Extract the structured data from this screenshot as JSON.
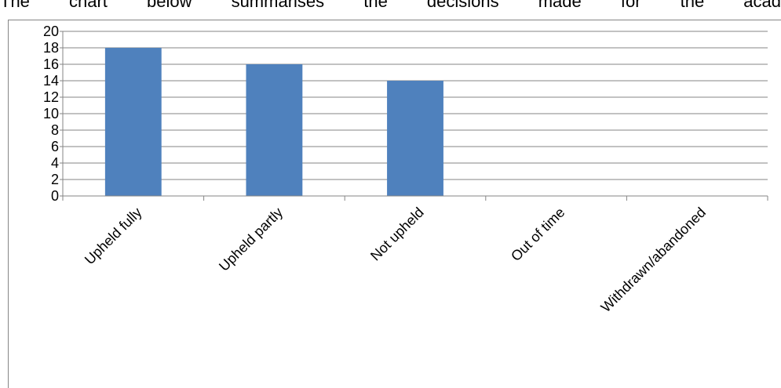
{
  "intro_text": "The chart below summarises the decisions made for the acad",
  "chart_data": {
    "type": "bar",
    "categories": [
      "Upheld fully",
      "Upheld partly",
      "Not upheld",
      "Out of time",
      "Withdrawn/abandoned"
    ],
    "values": [
      18,
      16,
      14,
      0,
      0
    ],
    "y_ticks": [
      "0",
      "2",
      "4",
      "6",
      "8",
      "10",
      "12",
      "14",
      "16",
      "18",
      "20"
    ],
    "ylim": [
      0,
      20
    ],
    "title": "",
    "xlabel": "",
    "ylabel": "",
    "grid": true,
    "legend": "none",
    "colors": {
      "bar": "#4f81bd",
      "gridline": "#868686",
      "axis": "#868686"
    }
  }
}
